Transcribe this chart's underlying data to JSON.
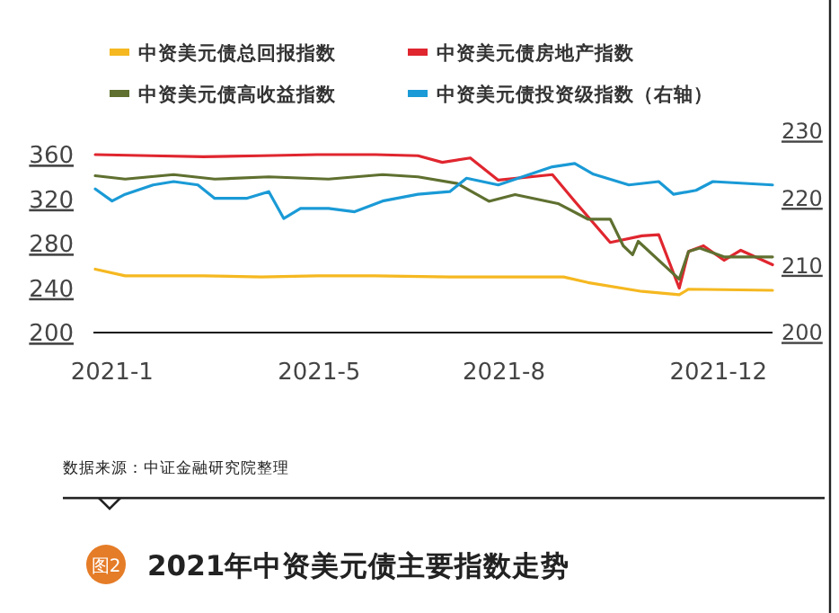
{
  "chart_data": {
    "type": "line",
    "title": "2021年中资美元债主要指数走势",
    "legend": "top",
    "grid": false,
    "annotations": [
      "数据来源：中证金融研究院整理",
      "图2"
    ],
    "xlim": [
      "2021-01-01",
      "2021-12-31"
    ],
    "xticks": [
      {
        "value": "2021-01-11",
        "label": "2021-1"
      },
      {
        "value": "2021-05-02",
        "label": "2021-5"
      },
      {
        "value": "2021-08-09",
        "label": "2021-8"
      },
      {
        "value": "2021-12-02",
        "label": "2021-12"
      }
    ],
    "ylim": [
      200,
      360
    ],
    "yticks": [
      200,
      240,
      280,
      320,
      360
    ],
    "y2lim": [
      200,
      230
    ],
    "y2ticks": [
      200,
      210,
      220,
      230
    ],
    "series": [
      {
        "name": "中资美元债总回报指数",
        "color": "#f5b820",
        "x": [
          "2021-01-02",
          "2021-01-18",
          "2021-03-01",
          "2021-04-01",
          "2021-05-01",
          "2021-06-01",
          "2021-07-11",
          "2021-09-10",
          "2021-09-23",
          "2021-10-22",
          "2021-11-11",
          "2021-11-16",
          "2021-12-31"
        ],
        "values": [
          257,
          251,
          251,
          250,
          251,
          251,
          250,
          250,
          245,
          237,
          234,
          239,
          238
        ]
      },
      {
        "name": "中资美元债房地产指数",
        "color": "#e0262f",
        "x": [
          "2021-01-02",
          "2021-02-01",
          "2021-03-01",
          "2021-04-01",
          "2021-05-01",
          "2021-06-01",
          "2021-06-24",
          "2021-07-07",
          "2021-07-22",
          "2021-08-06",
          "2021-09-04",
          "2021-09-16",
          "2021-10-05",
          "2021-10-22",
          "2021-10-31",
          "2021-11-11",
          "2021-11-16",
          "2021-11-24",
          "2021-12-05",
          "2021-12-14",
          "2021-12-31"
        ],
        "values": [
          360,
          359,
          358,
          359,
          360,
          360,
          359,
          353,
          357,
          337,
          342,
          318,
          281,
          287,
          288,
          240,
          273,
          278,
          265,
          274,
          261
        ]
      },
      {
        "name": "中资美元债高收益指数",
        "color": "#5f7030",
        "x": [
          "2021-01-02",
          "2021-01-18",
          "2021-02-13",
          "2021-03-07",
          "2021-04-05",
          "2021-05-07",
          "2021-06-05",
          "2021-06-24",
          "2021-07-15",
          "2021-08-01",
          "2021-08-15",
          "2021-09-07",
          "2021-09-23",
          "2021-10-05",
          "2021-10-12",
          "2021-10-17",
          "2021-10-20",
          "2021-11-11",
          "2021-11-16",
          "2021-11-22",
          "2021-12-05",
          "2021-12-31"
        ],
        "values": [
          341,
          338,
          342,
          338,
          340,
          338,
          342,
          340,
          334,
          318,
          324,
          316,
          302,
          302,
          278,
          270,
          282,
          248,
          273,
          276,
          268,
          268
        ]
      },
      {
        "name": "中资美元债投资级指数（右轴）",
        "color": "#1a9ad6",
        "axis": "y2",
        "x": [
          "2021-01-02",
          "2021-01-11",
          "2021-01-18",
          "2021-02-02",
          "2021-02-13",
          "2021-02-26",
          "2021-03-07",
          "2021-03-24",
          "2021-04-05",
          "2021-04-13",
          "2021-04-22",
          "2021-05-07",
          "2021-05-21",
          "2021-06-05",
          "2021-06-24",
          "2021-07-11",
          "2021-07-20",
          "2021-08-06",
          "2021-09-04",
          "2021-09-16",
          "2021-09-26",
          "2021-10-15",
          "2021-10-31",
          "2021-11-08",
          "2021-11-20",
          "2021-11-29",
          "2021-12-31"
        ],
        "values": [
          221.4,
          219.6,
          220.6,
          222,
          222.5,
          222,
          220,
          220,
          221,
          217,
          218.5,
          218.5,
          218,
          219.6,
          220.6,
          221,
          223,
          222,
          224.7,
          225.2,
          223.6,
          222,
          222.5,
          220.6,
          221.2,
          222.5,
          222
        ]
      }
    ]
  }
}
